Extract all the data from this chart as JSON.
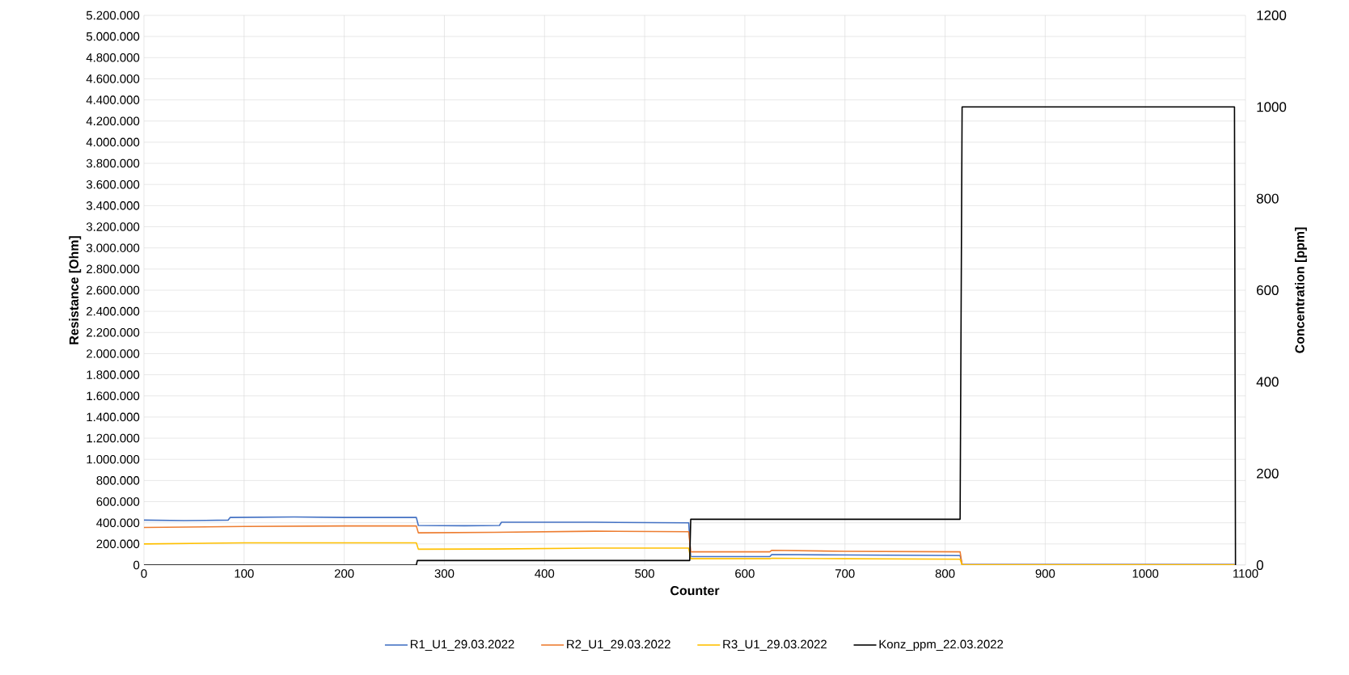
{
  "chart_data": {
    "type": "line",
    "xlabel": "Counter",
    "ylabel": "Resistance [Ohm]",
    "y2label": "Concentration [ppm]",
    "xlim": [
      0,
      1100
    ],
    "xticks": [
      0,
      100,
      200,
      300,
      400,
      500,
      600,
      700,
      800,
      900,
      1000,
      1100
    ],
    "ylim": [
      0,
      5200000
    ],
    "yticks": [
      0,
      {
        "value": 200000,
        "label": "200.000"
      },
      {
        "value": 400000,
        "label": "400.000"
      },
      {
        "value": 600000,
        "label": "600.000"
      },
      {
        "value": 800000,
        "label": "800.000"
      },
      {
        "value": 1000000,
        "label": "1.000.000"
      },
      {
        "value": 1200000,
        "label": "1.200.000"
      },
      {
        "value": 1400000,
        "label": "1.400.000"
      },
      {
        "value": 1600000,
        "label": "1.600.000"
      },
      {
        "value": 1800000,
        "label": "1.800.000"
      },
      {
        "value": 2000000,
        "label": "2.000.000"
      },
      {
        "value": 2200000,
        "label": "2.200.000"
      },
      {
        "value": 2400000,
        "label": "2.400.000"
      },
      {
        "value": 2600000,
        "label": "2.600.000"
      },
      {
        "value": 2800000,
        "label": "2.800.000"
      },
      {
        "value": 3000000,
        "label": "3.000.000"
      },
      {
        "value": 3200000,
        "label": "3.200.000"
      },
      {
        "value": 3400000,
        "label": "3.400.000"
      },
      {
        "value": 3600000,
        "label": "3.600.000"
      },
      {
        "value": 3800000,
        "label": "3.800.000"
      },
      {
        "value": 4000000,
        "label": "4.000.000"
      },
      {
        "value": 4200000,
        "label": "4.200.000"
      },
      {
        "value": 4400000,
        "label": "4.400.000"
      },
      {
        "value": 4600000,
        "label": "4.600.000"
      },
      {
        "value": 4800000,
        "label": "4.800.000"
      },
      {
        "value": 5000000,
        "label": "5.000.000"
      },
      {
        "value": 5200000,
        "label": "5.200.000"
      }
    ],
    "y2lim": [
      0,
      1200
    ],
    "y2ticks": [
      0,
      200,
      400,
      600,
      800,
      1000,
      1200
    ],
    "grid": true,
    "legend": "bottom",
    "marker": "none",
    "series": [
      {
        "name": "R1_U1_29.03.2022",
        "color": "#4472c4",
        "x": [
          0,
          40,
          84,
          86,
          150,
          200,
          272,
          274,
          320,
          355,
          357,
          450,
          544,
          546,
          600,
          625,
          627,
          700,
          815,
          817,
          1089
        ],
        "values": [
          425000,
          420000,
          425000,
          450000,
          455000,
          450000,
          450000,
          375000,
          372000,
          375000,
          405000,
          405000,
          400000,
          80000,
          80000,
          80000,
          100000,
          95000,
          90000,
          5000,
          5000
        ]
      },
      {
        "name": "R2_U1_29.03.2022",
        "color": "#ed7d31",
        "x": [
          0,
          100,
          200,
          272,
          274,
          350,
          450,
          544,
          546,
          625,
          627,
          700,
          815,
          817,
          1089
        ],
        "values": [
          355000,
          365000,
          370000,
          370000,
          305000,
          310000,
          320000,
          315000,
          125000,
          125000,
          140000,
          130000,
          125000,
          3000,
          3000
        ]
      },
      {
        "name": "R3_U1_29.03.2022",
        "color": "#ffc000",
        "x": [
          0,
          100,
          200,
          272,
          274,
          350,
          450,
          544,
          546,
          625,
          627,
          700,
          815,
          817,
          1089
        ],
        "values": [
          200000,
          210000,
          210000,
          210000,
          150000,
          152000,
          160000,
          160000,
          60000,
          60000,
          65000,
          60000,
          55000,
          2000,
          2000
        ]
      },
      {
        "name": "Konz_ppm_22.03.2022",
        "color": "#000000",
        "axis": "y2",
        "x": [
          0,
          272,
          273,
          545,
          546,
          815,
          817,
          1089,
          1090
        ],
        "values": [
          0,
          0,
          10,
          10,
          100,
          100,
          1000,
          1000,
          0
        ]
      }
    ]
  }
}
